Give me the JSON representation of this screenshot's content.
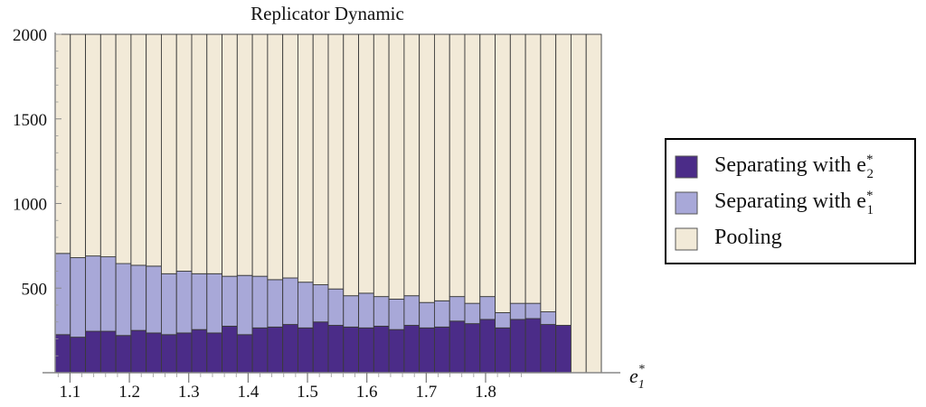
{
  "chart_data": {
    "type": "bar",
    "stacked": true,
    "title": "Replicator Dynamic",
    "xlabel": "e",
    "xlabel_sub": "1",
    "xlabel_sup": "*",
    "ylabel": "",
    "ylim": [
      0,
      2000
    ],
    "xlim": [
      1.075,
      1.995
    ],
    "yticks": [
      500,
      1000,
      1500,
      2000
    ],
    "xticks": [
      1.1,
      1.2,
      1.3,
      1.4,
      1.5,
      1.6,
      1.7,
      1.8
    ],
    "xtick_labels": [
      "1.1",
      "1.2",
      "1.3",
      "1.4",
      "1.5",
      "1.6",
      "1.7",
      "1.8"
    ],
    "ytick_labels": [
      "500",
      "1000",
      "1500",
      "2000"
    ],
    "grid": false,
    "legend_position": "right",
    "categories": [
      1.1,
      1.125,
      1.15,
      1.175,
      1.2,
      1.225,
      1.25,
      1.275,
      1.3,
      1.325,
      1.35,
      1.375,
      1.4,
      1.425,
      1.45,
      1.475,
      1.5,
      1.525,
      1.55,
      1.575,
      1.6,
      1.625,
      1.65,
      1.675,
      1.7,
      1.725,
      1.75,
      1.775,
      1.8,
      1.825,
      1.85,
      1.875,
      1.9,
      1.925,
      1.95,
      1.975
    ],
    "series": [
      {
        "name": "Separating with e",
        "sub": "2",
        "sup": "*",
        "color": "#4b2c88",
        "values": [
          225,
          210,
          245,
          245,
          220,
          250,
          235,
          225,
          235,
          255,
          235,
          275,
          225,
          265,
          270,
          285,
          265,
          300,
          280,
          270,
          265,
          275,
          255,
          280,
          265,
          270,
          305,
          290,
          315,
          265,
          315,
          320,
          285,
          280,
          0,
          0
        ]
      },
      {
        "name": "Separating with e",
        "sub": "1",
        "sup": "*",
        "color": "#a8a8d8",
        "values": [
          480,
          470,
          445,
          440,
          425,
          385,
          395,
          360,
          365,
          330,
          350,
          295,
          350,
          305,
          280,
          275,
          270,
          220,
          215,
          185,
          205,
          175,
          180,
          175,
          150,
          155,
          145,
          120,
          135,
          90,
          95,
          90,
          75,
          0,
          0,
          0
        ]
      },
      {
        "name": "Pooling",
        "sub": "",
        "sup": "",
        "color": "#f2ead8",
        "values": [
          1295,
          1320,
          1310,
          1315,
          1355,
          1365,
          1370,
          1415,
          1400,
          1415,
          1415,
          1430,
          1425,
          1430,
          1450,
          1440,
          1465,
          1480,
          1505,
          1545,
          1530,
          1550,
          1565,
          1545,
          1585,
          1575,
          1550,
          1590,
          1550,
          1645,
          1590,
          1590,
          1640,
          1720,
          2000,
          2000
        ]
      }
    ]
  }
}
